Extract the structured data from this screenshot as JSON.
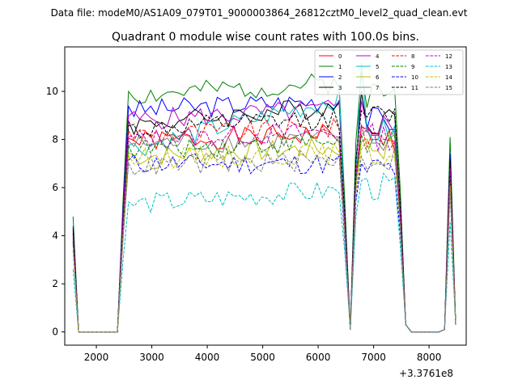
{
  "chart_data": {
    "type": "line",
    "suptitle": "Data file: modeM0/AS1A09_079T01_9000003864_26812cztM0_level2_quad_clean.evt",
    "title": "Quadrant 0 module wise count rates with 100.0s bins.",
    "xlabel": "",
    "ylabel": "",
    "x_offset_label": "+3.3761e8",
    "xlim": [
      1430,
      8670
    ],
    "ylim": [
      -0.55,
      11.85
    ],
    "xticks": [
      2000,
      3000,
      4000,
      5000,
      6000,
      7000,
      8000
    ],
    "xtick_labels": [
      "2000",
      "3000",
      "4000",
      "5000",
      "6000",
      "7000",
      "8000"
    ],
    "yticks": [
      0,
      2,
      4,
      6,
      8,
      10
    ],
    "ytick_labels": [
      "0",
      "2",
      "4",
      "6",
      "8",
      "10"
    ],
    "grid": false,
    "legend_position": "top-right",
    "legend_columns": 4,
    "segments_x": [
      [
        1580,
        1680,
        1780,
        1880,
        1980,
        2080,
        2180,
        2280,
        2380
      ],
      [
        2380,
        2480,
        2580,
        2680,
        2780,
        2880,
        2980,
        3080,
        3180,
        3280,
        3380,
        3480,
        3580,
        3680,
        3780,
        3880,
        3980,
        4080,
        4180,
        4280,
        4380,
        4480,
        4580,
        4680,
        4780,
        4880,
        4980,
        5080,
        5180,
        5280,
        5380,
        5480,
        5580,
        5680,
        5780,
        5880,
        5980,
        6080,
        6180,
        6280,
        6380,
        6480,
        6580,
        6680,
        6780,
        6880,
        6980,
        7080,
        7180,
        7280,
        7380,
        7480,
        7580,
        7680,
        7780,
        7880,
        7980,
        8080,
        8180,
        8280,
        8380,
        8480
      ]
    ],
    "series": [
      {
        "name": "0",
        "color": "#ff0000",
        "dash": "solid",
        "start": 4.2,
        "plateau": 7.9,
        "p2": 8.5,
        "gapv": 8.0,
        "spike": 6.8,
        "seed": 1
      },
      {
        "name": "1",
        "color": "#008000",
        "dash": "solid",
        "start": 4.8,
        "plateau": 9.8,
        "p2": 10.8,
        "gapv": 9.9,
        "spike": 8.1,
        "seed": 2
      },
      {
        "name": "2",
        "color": "#0000ff",
        "dash": "solid",
        "start": 4.4,
        "plateau": 9.2,
        "p2": 10.0,
        "gapv": 8.8,
        "spike": 7.4,
        "seed": 3
      },
      {
        "name": "3",
        "color": "#000000",
        "dash": "solid",
        "start": 4.3,
        "plateau": 8.6,
        "p2": 10.0,
        "gapv": 8.8,
        "spike": 7.2,
        "seed": 4
      },
      {
        "name": "4",
        "color": "#bf00bf",
        "dash": "solid",
        "start": 4.0,
        "plateau": 8.8,
        "p2": 9.6,
        "gapv": 8.6,
        "spike": 7.0,
        "seed": 5
      },
      {
        "name": "5",
        "color": "#00bfbf",
        "dash": "solid",
        "start": 3.8,
        "plateau": 7.6,
        "p2": 11.2,
        "gapv": 8.3,
        "spike": 6.6,
        "seed": 6
      },
      {
        "name": "6",
        "color": "#bfbf00",
        "dash": "solid",
        "start": 3.6,
        "plateau": 7.3,
        "p2": 7.9,
        "gapv": 7.7,
        "spike": 6.2,
        "seed": 7
      },
      {
        "name": "7",
        "color": "#7f7f7f",
        "dash": "solid",
        "start": 3.7,
        "plateau": 7.8,
        "p2": 8.2,
        "gapv": 7.9,
        "spike": 6.4,
        "seed": 8
      },
      {
        "name": "8",
        "color": "#ff0000",
        "dash": "dashed",
        "start": 3.9,
        "plateau": 8.2,
        "p2": 8.6,
        "gapv": 8.2,
        "spike": 6.9,
        "seed": 9
      },
      {
        "name": "9",
        "color": "#008000",
        "dash": "dashed",
        "start": 3.8,
        "plateau": 7.6,
        "p2": 8.2,
        "gapv": 7.8,
        "spike": 6.5,
        "seed": 10
      },
      {
        "name": "10",
        "color": "#0000ff",
        "dash": "dashed",
        "start": 3.7,
        "plateau": 7.0,
        "p2": 7.0,
        "gapv": 6.8,
        "spike": 6.0,
        "seed": 11
      },
      {
        "name": "11",
        "color": "#000000",
        "dash": "dashed",
        "start": 4.1,
        "plateau": 8.4,
        "p2": 9.2,
        "gapv": 8.9,
        "spike": 7.0,
        "seed": 12
      },
      {
        "name": "12",
        "color": "#bf00bf",
        "dash": "dashed",
        "start": 3.9,
        "plateau": 8.0,
        "p2": 8.6,
        "gapv": 8.1,
        "spike": 6.8,
        "seed": 13
      },
      {
        "name": "13",
        "color": "#00bfbf",
        "dash": "dashed",
        "start": 2.6,
        "plateau": 5.3,
        "p2": 6.3,
        "gapv": 6.0,
        "spike": 4.6,
        "seed": 14
      },
      {
        "name": "14",
        "color": "#bfbf00",
        "dash": "dashed",
        "start": 3.5,
        "plateau": 7.2,
        "p2": 7.6,
        "gapv": 7.4,
        "spike": 6.1,
        "seed": 15
      },
      {
        "name": "15",
        "color": "#7f7f7f",
        "dash": "dashed",
        "start": 3.4,
        "plateau": 6.9,
        "p2": 7.3,
        "gapv": 7.2,
        "spike": 5.8,
        "seed": 16
      }
    ]
  }
}
